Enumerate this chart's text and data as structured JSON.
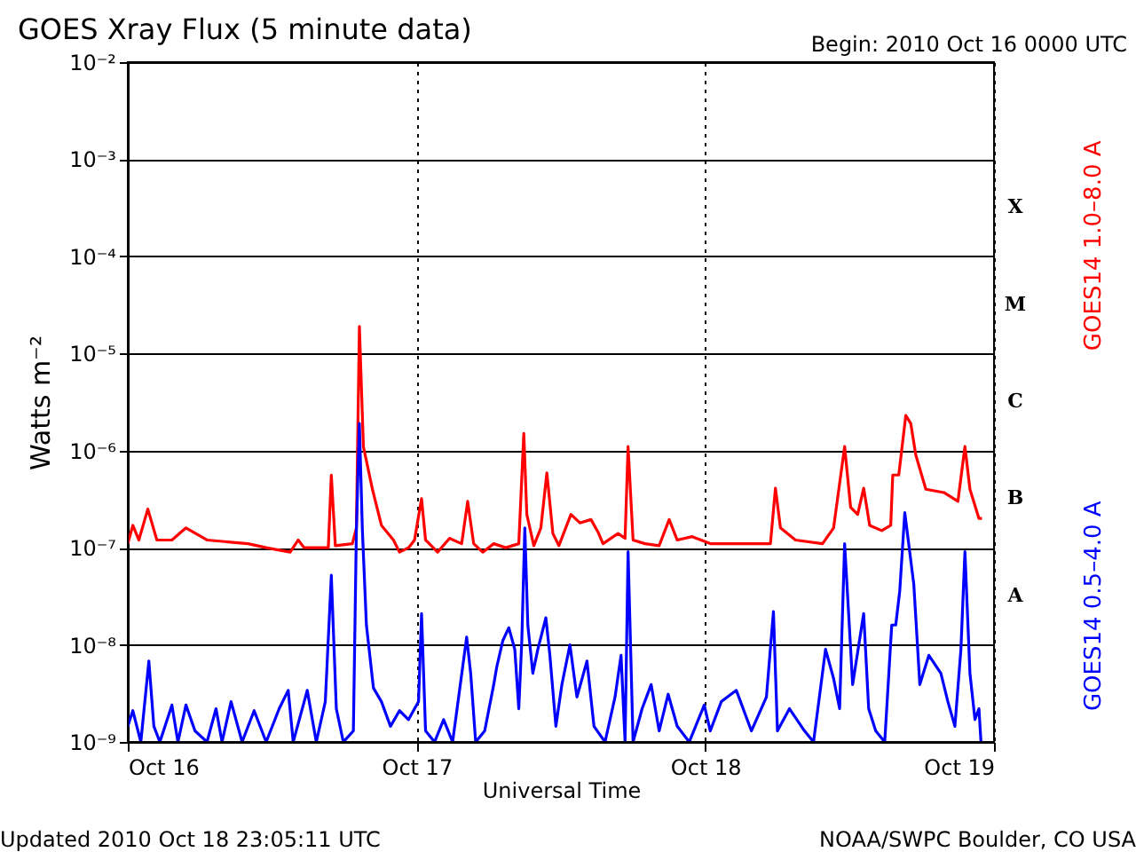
{
  "chart_data": {
    "type": "line",
    "title": "GOES Xray Flux (5 minute data)",
    "xlabel": "Universal Time",
    "ylabel": "Watts m⁻²",
    "log": "y",
    "grid": true,
    "ylim": [
      1e-09,
      0.01
    ],
    "yticks": [
      {
        "value": 1e-09,
        "label": "10⁻⁹"
      },
      {
        "value": 1e-08,
        "label": "10⁻⁸"
      },
      {
        "value": 1e-07,
        "label": "10⁻⁷"
      },
      {
        "value": 1e-06,
        "label": "10⁻⁶"
      },
      {
        "value": 1e-05,
        "label": "10⁻⁵"
      },
      {
        "value": 0.0001,
        "label": "10⁻⁴"
      },
      {
        "value": 0.001,
        "label": "10⁻³"
      },
      {
        "value": 0.01,
        "label": "10⁻²"
      }
    ],
    "xlim": [
      "2010-10-16T00:00",
      "2010-10-19T00:00"
    ],
    "xticks": [
      {
        "value": "2010-10-16T00:00",
        "label": "Oct 16"
      },
      {
        "value": "2010-10-17T00:00",
        "label": "Oct 17"
      },
      {
        "value": "2010-10-18T00:00",
        "label": "Oct 18"
      },
      {
        "value": "2010-10-19T00:00",
        "label": "Oct 19"
      }
    ],
    "annotations": [
      "Begin:  2010 Oct 16 0000 UTC",
      "Updated 2010 Oct 18 23:05:11 UTC",
      "NOAA/SWPC Boulder, CO USA",
      "X",
      "M",
      "C",
      "B",
      "A"
    ],
    "series": [
      {
        "name": "GOES14 1.0–8.0 A",
        "color": "#ff0000",
        "x": [
          "2010-10-16T00:00",
          "2010-10-16T00:25",
          "2010-10-16T00:55",
          "2010-10-16T01:40",
          "2010-10-16T02:25",
          "2010-10-16T03:40",
          "2010-10-16T04:50",
          "2010-10-16T06:35",
          "2010-10-16T10:00",
          "2010-10-16T11:30",
          "2010-10-16T13:30",
          "2010-10-16T14:10",
          "2010-10-16T14:40",
          "2010-10-16T16:40",
          "2010-10-16T16:55",
          "2010-10-16T17:15",
          "2010-10-16T18:40",
          "2010-10-16T19:00",
          "2010-10-16T19:15",
          "2010-10-16T19:35",
          "2010-10-16T20:20",
          "2010-10-16T21:05",
          "2010-10-16T22:05",
          "2010-10-16T22:35",
          "2010-10-16T23:20",
          "2010-10-16T23:50",
          "2010-10-17T00:25",
          "2010-10-17T00:45",
          "2010-10-17T01:45",
          "2010-10-17T02:45",
          "2010-10-17T03:45",
          "2010-10-17T04:15",
          "2010-10-17T04:45",
          "2010-10-17T05:30",
          "2010-10-17T06:25",
          "2010-10-17T07:25",
          "2010-10-17T08:30",
          "2010-10-17T08:55",
          "2010-10-17T09:10",
          "2010-10-17T09:45",
          "2010-10-17T10:20",
          "2010-10-17T10:50",
          "2010-10-17T11:20",
          "2010-10-17T11:50",
          "2010-10-17T12:50",
          "2010-10-17T13:35",
          "2010-10-17T14:30",
          "2010-10-17T15:05",
          "2010-10-17T15:30",
          "2010-10-17T16:45",
          "2010-10-17T17:20",
          "2010-10-17T17:35",
          "2010-10-17T18:00",
          "2010-10-17T19:00",
          "2010-10-17T20:10",
          "2010-10-17T21:00",
          "2010-10-17T21:40",
          "2010-10-17T22:55",
          "2010-10-18T00:25",
          "2010-10-18T02:50",
          "2010-10-18T05:25",
          "2010-10-18T05:50",
          "2010-10-18T06:15",
          "2010-10-18T07:30",
          "2010-10-18T09:45",
          "2010-10-18T10:40",
          "2010-10-18T11:35",
          "2010-10-18T12:05",
          "2010-10-18T12:40",
          "2010-10-18T13:10",
          "2010-10-18T13:40",
          "2010-10-18T14:40",
          "2010-10-18T15:25",
          "2010-10-18T15:35",
          "2010-10-18T16:05",
          "2010-10-18T16:40",
          "2010-10-18T17:05",
          "2010-10-18T17:30",
          "2010-10-18T18:20",
          "2010-10-18T19:50",
          "2010-10-18T21:00",
          "2010-10-18T21:35",
          "2010-10-18T22:00",
          "2010-10-18T22:45",
          "2010-10-18T23:00"
        ],
        "values": [
          1.1e-07,
          1.7e-07,
          1.2e-07,
          2.5e-07,
          1.2e-07,
          1.2e-07,
          1.6e-07,
          1.2e-07,
          1.1e-07,
          1e-07,
          9e-08,
          1.2e-07,
          1e-07,
          1e-07,
          5.6e-07,
          1.05e-07,
          1.1e-07,
          1.6e-07,
          1.9e-05,
          1.1e-06,
          4e-07,
          1.7e-07,
          1.2e-07,
          9e-08,
          1e-07,
          1.2e-07,
          3.2e-07,
          1.2e-07,
          9e-08,
          1.25e-07,
          1.1e-07,
          3e-07,
          1.1e-07,
          9e-08,
          1.1e-07,
          1e-07,
          1.1e-07,
          1.5e-06,
          2.2e-07,
          1.05e-07,
          1.6e-07,
          5.9e-07,
          1.4e-07,
          1.05e-07,
          2.2e-07,
          1.8e-07,
          1.95e-07,
          1.45e-07,
          1.1e-07,
          1.4e-07,
          1.25e-07,
          1.1e-06,
          1.2e-07,
          1.1e-07,
          1.05e-07,
          1.95e-07,
          1.2e-07,
          1.3e-07,
          1.1e-07,
          1.1e-07,
          1.1e-07,
          4.1e-07,
          1.6e-07,
          1.2e-07,
          1.1e-07,
          1.6e-07,
          1.1e-06,
          2.6e-07,
          2.2e-07,
          4.1e-07,
          1.7e-07,
          1.5e-07,
          1.7e-07,
          5.6e-07,
          5.6e-07,
          2.3e-06,
          1.9e-06,
          9e-07,
          4e-07,
          3.7e-07,
          3e-07,
          1.1e-06,
          4e-07,
          2e-07,
          2e-07
        ]
      },
      {
        "name": "GOES14 0.5–4.0 A",
        "color": "#0000ff",
        "x": [
          "2010-10-16T00:00",
          "2010-10-16T00:25",
          "2010-10-16T01:05",
          "2010-10-16T01:45",
          "2010-10-16T02:10",
          "2010-10-16T02:40",
          "2010-10-16T03:40",
          "2010-10-16T04:10",
          "2010-10-16T04:50",
          "2010-10-16T05:35",
          "2010-10-16T06:35",
          "2010-10-16T07:20",
          "2010-10-16T07:50",
          "2010-10-16T08:35",
          "2010-10-16T09:30",
          "2010-10-16T10:30",
          "2010-10-16T11:30",
          "2010-10-16T12:35",
          "2010-10-16T13:20",
          "2010-10-16T13:45",
          "2010-10-16T14:55",
          "2010-10-16T15:40",
          "2010-10-16T16:25",
          "2010-10-16T16:55",
          "2010-10-16T17:20",
          "2010-10-16T17:55",
          "2010-10-16T18:45",
          "2010-10-16T19:00",
          "2010-10-16T19:15",
          "2010-10-16T19:30",
          "2010-10-16T19:50",
          "2010-10-16T20:25",
          "2010-10-16T21:05",
          "2010-10-16T21:50",
          "2010-10-16T22:35",
          "2010-10-16T23:20",
          "2010-10-17T00:10",
          "2010-10-17T00:25",
          "2010-10-17T00:45",
          "2010-10-17T01:30",
          "2010-10-17T02:15",
          "2010-10-17T03:00",
          "2010-10-17T04:10",
          "2010-10-17T04:30",
          "2010-10-17T04:55",
          "2010-10-17T05:40",
          "2010-10-17T06:25",
          "2010-10-17T06:40",
          "2010-10-17T07:10",
          "2010-10-17T07:40",
          "2010-10-17T08:10",
          "2010-10-17T08:30",
          "2010-10-17T08:45",
          "2010-10-17T09:00",
          "2010-10-17T09:15",
          "2010-10-17T09:40",
          "2010-10-17T10:05",
          "2010-10-17T10:45",
          "2010-10-17T11:05",
          "2010-10-17T11:35",
          "2010-10-17T12:05",
          "2010-10-17T12:45",
          "2010-10-17T13:20",
          "2010-10-17T14:10",
          "2010-10-17T14:45",
          "2010-10-17T15:40",
          "2010-10-17T16:30",
          "2010-10-17T17:00",
          "2010-10-17T17:20",
          "2010-10-17T17:35",
          "2010-10-17T18:00",
          "2010-10-17T18:45",
          "2010-10-17T19:30",
          "2010-10-17T20:10",
          "2010-10-17T20:55",
          "2010-10-17T21:40",
          "2010-10-17T22:40",
          "2010-10-17T23:55",
          "2010-10-18T00:25",
          "2010-10-18T01:20",
          "2010-10-18T02:35",
          "2010-10-18T03:50",
          "2010-10-18T05:05",
          "2010-10-18T05:40",
          "2010-10-18T06:00",
          "2010-10-18T07:00",
          "2010-10-18T08:15",
          "2010-10-18T09:00",
          "2010-10-18T10:00",
          "2010-10-18T10:40",
          "2010-10-18T11:10",
          "2010-10-18T11:35",
          "2010-10-18T11:55",
          "2010-10-18T12:15",
          "2010-10-18T13:10",
          "2010-10-18T13:35",
          "2010-10-18T14:10",
          "2010-10-18T14:55",
          "2010-10-18T15:30",
          "2010-10-18T15:50",
          "2010-10-18T16:10",
          "2010-10-18T16:35",
          "2010-10-18T17:20",
          "2010-10-18T17:50",
          "2010-10-18T18:35",
          "2010-10-18T19:35",
          "2010-10-18T20:10",
          "2010-10-18T20:45",
          "2010-10-18T21:15",
          "2010-10-18T21:35",
          "2010-10-18T22:00",
          "2010-10-18T22:25",
          "2010-10-18T22:45",
          "2010-10-18T22:55"
        ],
        "values": [
          1.45e-09,
          2.1e-09,
          1e-09,
          6.8e-09,
          1.45e-09,
          1e-09,
          2.4e-09,
          1e-09,
          2.4e-09,
          1.3e-09,
          1e-09,
          2.2e-09,
          1e-09,
          2.6e-09,
          1e-09,
          2.1e-09,
          1e-09,
          2.2e-09,
          3.4e-09,
          1e-09,
          3.4e-09,
          1e-09,
          2.6e-09,
          5.2e-08,
          2.2e-09,
          1e-09,
          1.3e-09,
          1.5e-07,
          1.9e-06,
          1.5e-07,
          1.6e-08,
          3.6e-09,
          2.6e-09,
          1.45e-09,
          2.1e-09,
          1.7e-09,
          2.6e-09,
          2.1e-08,
          1.3e-09,
          1e-09,
          1.7e-09,
          1e-09,
          1.2e-08,
          5.1e-09,
          1e-09,
          1.3e-09,
          3.9e-09,
          5.9e-09,
          1.1e-08,
          1.5e-08,
          9e-09,
          2.2e-09,
          1.1e-08,
          1.6e-07,
          1.6e-08,
          5.1e-09,
          9e-09,
          1.9e-08,
          7.8e-09,
          1.45e-09,
          3.9e-09,
          1e-08,
          2.9e-09,
          6.8e-09,
          1.45e-09,
          1e-09,
          2.9e-09,
          7.8e-09,
          1e-09,
          9.1e-08,
          1e-09,
          2.2e-09,
          3.9e-09,
          1.3e-09,
          3.1e-09,
          1.45e-09,
          1e-09,
          2.4e-09,
          1.3e-09,
          2.6e-09,
          3.4e-09,
          1.3e-09,
          2.9e-09,
          2.2e-08,
          1.3e-09,
          2.2e-09,
          1.3e-09,
          1e-09,
          9e-09,
          4.5e-09,
          2.2e-09,
          1.1e-07,
          2.1e-08,
          3.9e-09,
          2.1e-08,
          2.2e-09,
          1.3e-09,
          1e-09,
          1.6e-08,
          1.6e-08,
          3.6e-08,
          2.3e-07,
          4.2e-08,
          3.9e-09,
          7.8e-09,
          5.1e-09,
          2.6e-09,
          1.45e-09,
          9e-09,
          9.1e-08,
          5.1e-09,
          1.7e-09,
          2.2e-09,
          1e-09
        ]
      }
    ]
  }
}
